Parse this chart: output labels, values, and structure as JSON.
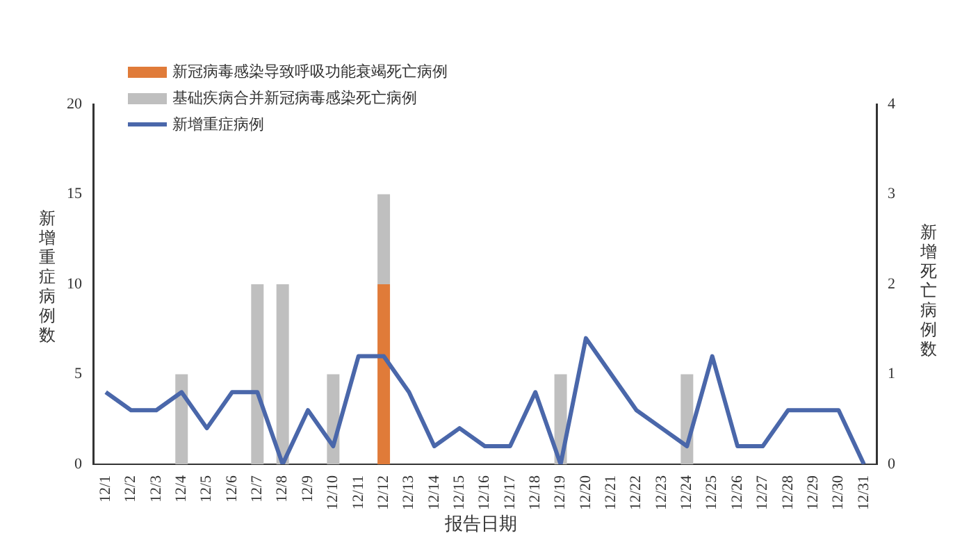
{
  "chart_data": {
    "type": "bar",
    "stacked": true,
    "xlabel": "报告日期",
    "ylabel": "新增重症病例数",
    "y2label": "新增死亡病例数",
    "categories": [
      "12/1",
      "12/2",
      "12/3",
      "12/4",
      "12/5",
      "12/6",
      "12/7",
      "12/8",
      "12/9",
      "12/10",
      "12/11",
      "12/12",
      "12/13",
      "12/14",
      "12/15",
      "12/16",
      "12/17",
      "12/18",
      "12/19",
      "12/20",
      "12/21",
      "12/22",
      "12/23",
      "12/24",
      "12/25",
      "12/26",
      "12/27",
      "12/28",
      "12/29",
      "12/30",
      "12/31"
    ],
    "series": [
      {
        "name": "新冠病毒感染导致呼吸功能衰竭死亡病例",
        "axis": "y2",
        "color": "#e07b39",
        "values": [
          0,
          0,
          0,
          0,
          0,
          0,
          0,
          0,
          0,
          0,
          0,
          2,
          0,
          0,
          0,
          0,
          0,
          0,
          0,
          0,
          0,
          0,
          0,
          0,
          0,
          0,
          0,
          0,
          0,
          0,
          0
        ]
      },
      {
        "name": "基础疾病合并新冠病毒感染死亡病例",
        "axis": "y2",
        "color": "#bfbfbf",
        "values": [
          0,
          0,
          0,
          1,
          0,
          0,
          2,
          2,
          0,
          1,
          0,
          1,
          0,
          0,
          0,
          0,
          0,
          0,
          1,
          0,
          0,
          0,
          0,
          1,
          0,
          0,
          0,
          0,
          0,
          0,
          0
        ]
      },
      {
        "name": "新增重症病例",
        "type": "line",
        "axis": "y",
        "color": "#4a67aa",
        "values": [
          4,
          3,
          3,
          4,
          2,
          4,
          4,
          0,
          3,
          1,
          6,
          6,
          4,
          1,
          2,
          1,
          1,
          4,
          0,
          7,
          5,
          3,
          2,
          1,
          6,
          1,
          1,
          3,
          3,
          3,
          0
        ]
      }
    ],
    "ylim": [
      0,
      20
    ],
    "yticks": [
      0,
      5,
      10,
      15,
      20
    ],
    "y2lim": [
      0,
      4
    ],
    "y2ticks": [
      0,
      1,
      2,
      3,
      4
    ],
    "legend": "top left",
    "grid": false,
    "marker": "none",
    "line_style": "solid"
  }
}
